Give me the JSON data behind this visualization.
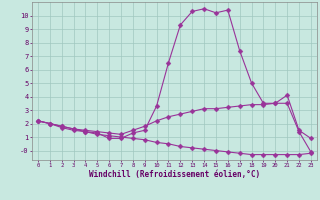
{
  "xlabel": "Windchill (Refroidissement éolien,°C)",
  "bg_color": "#c8e8e0",
  "grid_color": "#a0c8c0",
  "line_color": "#993399",
  "x_values": [
    0,
    1,
    2,
    3,
    4,
    5,
    6,
    7,
    8,
    9,
    10,
    11,
    12,
    13,
    14,
    15,
    16,
    17,
    18,
    19,
    20,
    21,
    22,
    23
  ],
  "curve1": [
    2.2,
    2.0,
    1.8,
    1.6,
    1.4,
    1.3,
    0.9,
    0.9,
    1.3,
    1.5,
    3.3,
    6.5,
    9.3,
    10.3,
    10.5,
    10.2,
    10.4,
    7.4,
    5.0,
    3.5,
    3.5,
    4.1,
    1.5,
    0.9
  ],
  "curve2": [
    2.2,
    2.0,
    1.8,
    1.6,
    1.5,
    1.4,
    1.3,
    1.2,
    1.5,
    1.8,
    2.2,
    2.5,
    2.7,
    2.9,
    3.1,
    3.1,
    3.2,
    3.3,
    3.4,
    3.4,
    3.5,
    3.5,
    1.4,
    -0.1
  ],
  "curve3": [
    2.2,
    2.0,
    1.7,
    1.5,
    1.4,
    1.2,
    1.1,
    1.0,
    0.9,
    0.8,
    0.6,
    0.5,
    0.3,
    0.2,
    0.1,
    0.0,
    -0.1,
    -0.2,
    -0.3,
    -0.3,
    -0.3,
    -0.3,
    -0.3,
    -0.2
  ],
  "ylim": [
    -0.7,
    11.0
  ],
  "xlim": [
    -0.5,
    23.5
  ],
  "yticks": [
    0,
    1,
    2,
    3,
    4,
    5,
    6,
    7,
    8,
    9,
    10
  ],
  "ytick_labels": [
    "-0",
    "1",
    "2",
    "3",
    "4",
    "5",
    "6",
    "7",
    "8",
    "9",
    "10"
  ],
  "xtick_labels": [
    "0",
    "1",
    "2",
    "3",
    "4",
    "5",
    "6",
    "7",
    "8",
    "9",
    "10",
    "11",
    "12",
    "13",
    "14",
    "15",
    "16",
    "17",
    "18",
    "19",
    "20",
    "21",
    "22",
    "23"
  ]
}
